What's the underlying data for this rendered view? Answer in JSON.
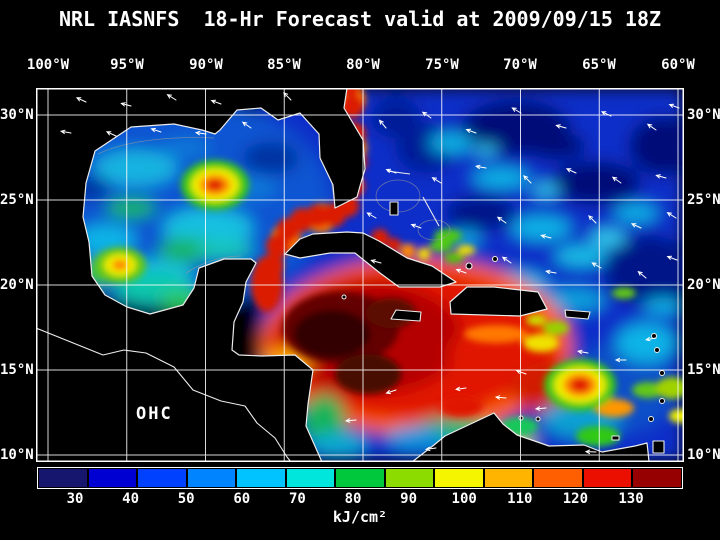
{
  "title": "NRL IASNFS  18-Hr Forecast valid at 2009/09/15 18Z",
  "axes": {
    "lon_ticks": [
      "100°W",
      "95°W",
      "90°W",
      "85°W",
      "80°W",
      "75°W",
      "70°W",
      "65°W",
      "60°W"
    ],
    "lat_ticks_left": [
      "30°N",
      "25°N",
      "20°N",
      "15°N",
      "10°N"
    ],
    "lat_ticks_right": [
      "30°N",
      "25°N",
      "20°N",
      "15°N",
      "10°N"
    ]
  },
  "map": {
    "overlay_label": "OHC"
  },
  "colorbar": {
    "ticks": [
      "30",
      "40",
      "50",
      "60",
      "70",
      "80",
      "90",
      "100",
      "110",
      "120",
      "130"
    ],
    "unit": "kJ/cm²",
    "segments": [
      "#16166e",
      "#0000d2",
      "#0041ff",
      "#0084ff",
      "#00c3ff",
      "#00e6dc",
      "#00c83c",
      "#8cdc00",
      "#f5f500",
      "#ffb400",
      "#ff5f00",
      "#eb0f00",
      "#960000"
    ]
  },
  "chart_data": {
    "type": "heatmap",
    "title": "NRL IASNFS 18-Hr Forecast valid at 2009/09/15 18Z",
    "variable": "OHC",
    "unit": "kJ/cm²",
    "scale_ticks": [
      30,
      40,
      50,
      60,
      70,
      80,
      90,
      100,
      110,
      120,
      130
    ],
    "lon_range": [
      "100°W",
      "60°W"
    ],
    "lat_range": [
      "10°N",
      "30°N"
    ],
    "grid": true,
    "legend_position": "bottom"
  }
}
